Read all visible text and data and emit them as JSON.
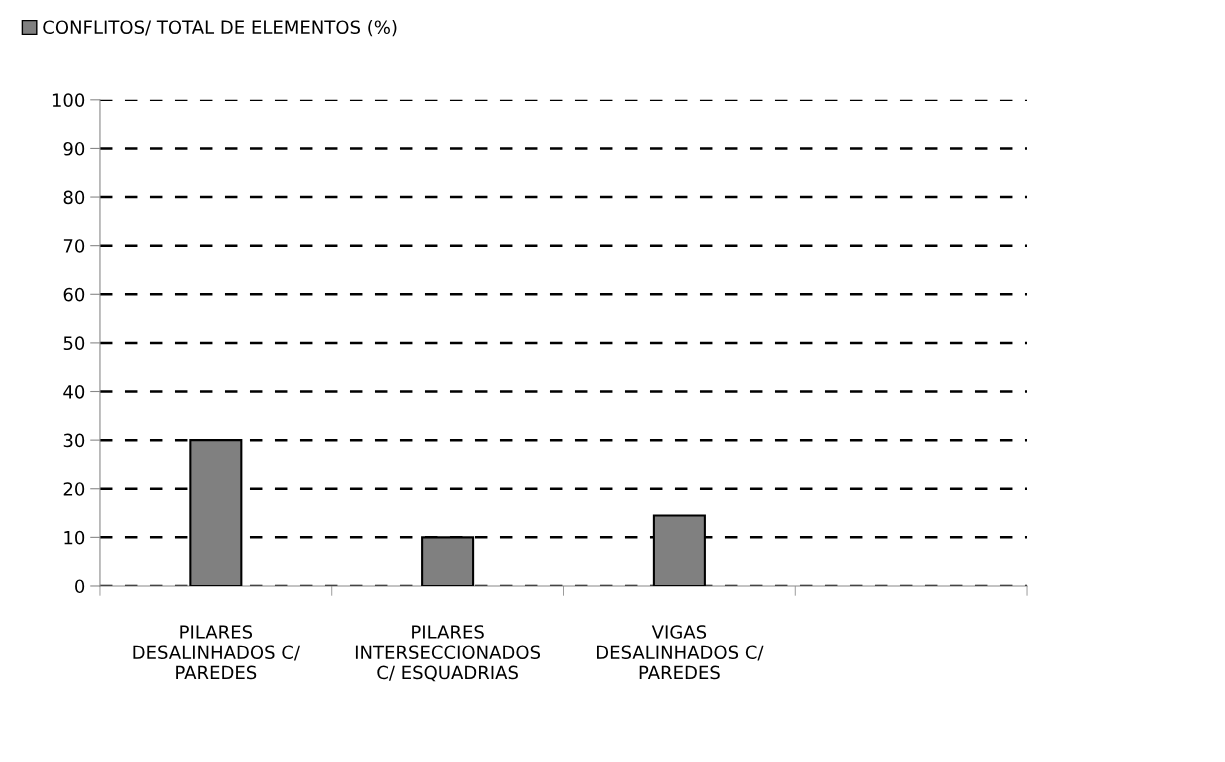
{
  "chart_data": {
    "type": "bar",
    "categories": [
      "PILARES\nDESALINHADOS C/\nPAREDES",
      "PILARES\nINTERSECCIONADOS\nC/ ESQUADRIAS",
      "VIGAS\nDESALINHADOS C/\nPAREDES",
      null
    ],
    "series": [
      {
        "name": "CONFLITOS/ TOTAL DE ELEMENTOS (%)",
        "color": "#808080",
        "values": [
          30,
          10,
          14.5,
          null
        ]
      }
    ],
    "ylim": [
      0,
      100
    ],
    "yticks": [
      0,
      10,
      20,
      30,
      40,
      50,
      60,
      70,
      80,
      90,
      100
    ],
    "grid": "y",
    "line_style": "dashed",
    "legend": "top left"
  }
}
